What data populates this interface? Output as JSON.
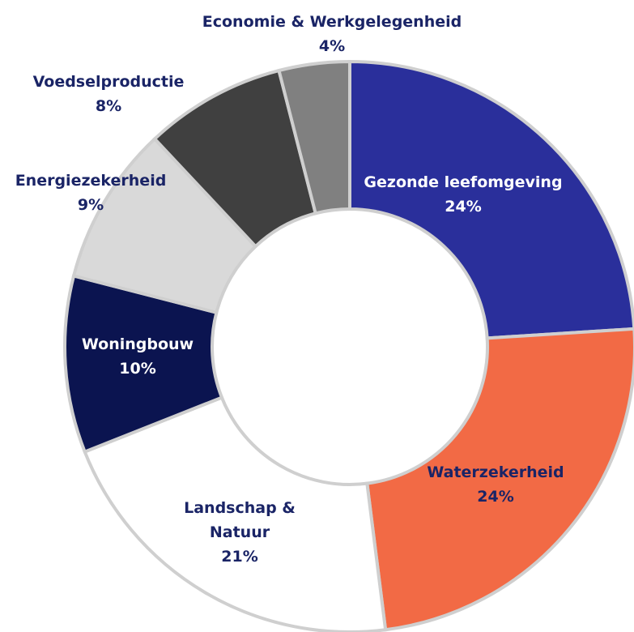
{
  "chart_data": {
    "type": "donut",
    "categories": [
      "Gezonde leefomgeving",
      "Waterzekerheid",
      "Landschap & Natuur",
      "Woningbouw",
      "Energiezekerheid",
      "Voedselproductie",
      "Economie & Werkgelegenheid"
    ],
    "values": [
      24,
      24,
      21,
      10,
      9,
      8,
      4
    ],
    "value_labels": [
      "24%",
      "24%",
      "21%",
      "10%",
      "9%",
      "8%",
      "4%"
    ],
    "colors": [
      "#2a2f9b",
      "#f26a45",
      "#ffffff",
      "#0b1450",
      "#d9d9d9",
      "#404040",
      "#808080"
    ]
  }
}
